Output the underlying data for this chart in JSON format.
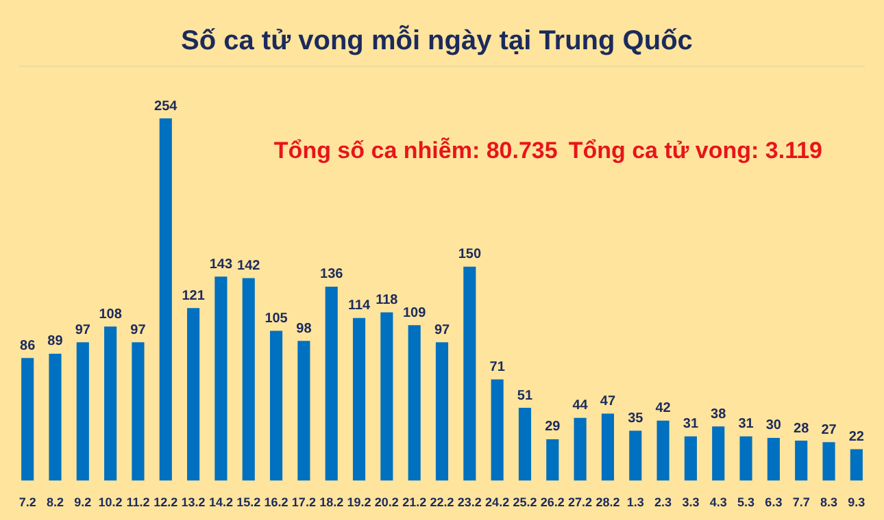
{
  "chart_data": {
    "type": "bar",
    "title": "Số ca tử vong mỗi ngày tại Trung Quốc",
    "categories": [
      "7.2",
      "8.2",
      "9.2",
      "10.2",
      "11.2",
      "12.2",
      "13.2",
      "14.2",
      "15.2",
      "16.2",
      "17.2",
      "18.2",
      "19.2",
      "20.2",
      "21.2",
      "22.2",
      "23.2",
      "24.2",
      "25.2",
      "26.2",
      "27.2",
      "28.2",
      "1.3",
      "2.3",
      "3.3",
      "4.3",
      "5.3",
      "6.3",
      "7.7",
      "8.3",
      "9.3"
    ],
    "values": [
      86,
      89,
      97,
      108,
      97,
      254,
      121,
      143,
      142,
      105,
      98,
      136,
      114,
      118,
      109,
      97,
      150,
      71,
      51,
      29,
      44,
      47,
      35,
      42,
      31,
      38,
      31,
      30,
      28,
      27,
      22
    ],
    "color": "#0070c0",
    "data_labels": true,
    "ylim": [
      0,
      290
    ],
    "tick_labels": "x",
    "annotations": [
      "Tổng số ca nhiễm: 80.735",
      "Tổng ca tử vong: 3.119"
    ]
  }
}
